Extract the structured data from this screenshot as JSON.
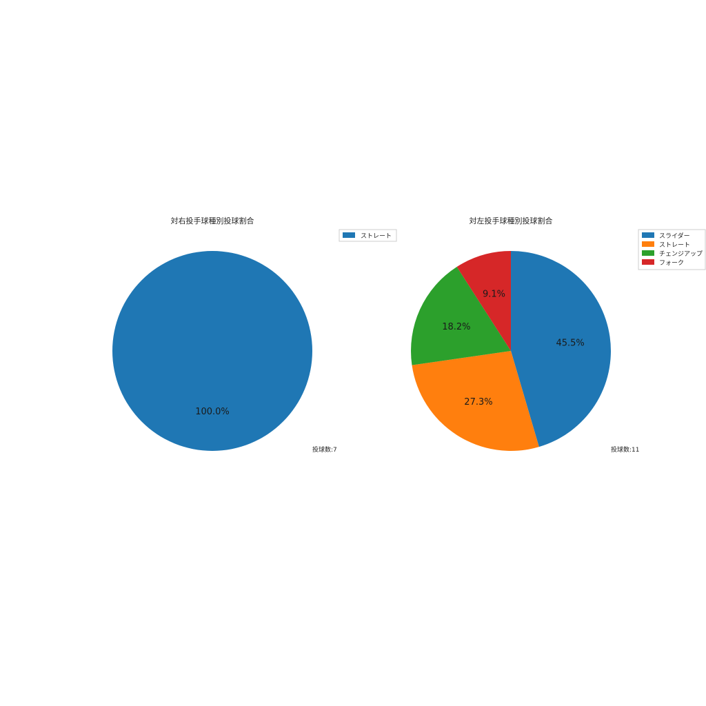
{
  "chart_data": [
    {
      "type": "pie",
      "title": "対右投手球種別投球割合",
      "categories": [
        "ストレート"
      ],
      "values": [
        100.0
      ],
      "labels": [
        "100.0%"
      ],
      "colors": [
        "#1f77b4"
      ],
      "legend": [
        "ストレート"
      ],
      "legend_position": "top-right",
      "annotation": "投球数:7"
    },
    {
      "type": "pie",
      "title": "対左投手球種別投球割合",
      "categories": [
        "スライダー",
        "ストレート",
        "チェンジアップ",
        "フォーク"
      ],
      "values": [
        45.5,
        27.3,
        18.2,
        9.1
      ],
      "labels": [
        "45.5%",
        "27.3%",
        "18.2%",
        "9.1%"
      ],
      "colors": [
        "#1f77b4",
        "#ff7f0e",
        "#2ca02c",
        "#d62728"
      ],
      "legend": [
        "スライダー",
        "ストレート",
        "チェンジアップ",
        "フォーク"
      ],
      "legend_position": "top-right",
      "annotation": "投球数:11"
    }
  ]
}
